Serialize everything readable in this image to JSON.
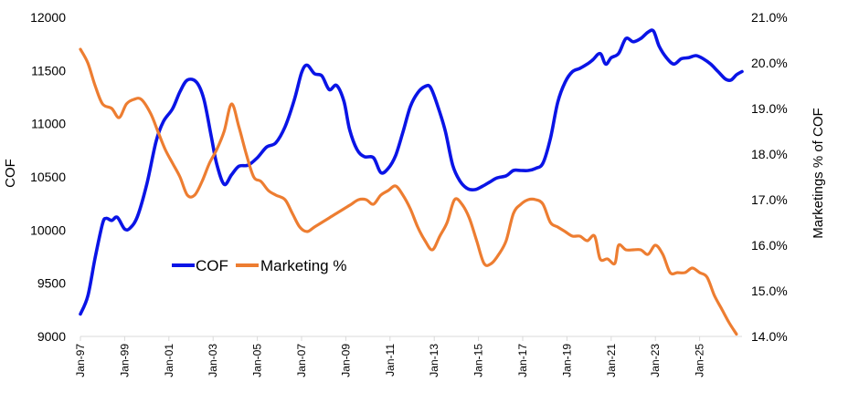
{
  "chart_data": {
    "type": "line",
    "title": "",
    "ylabel_left": "COF",
    "ylabel_right": "Marketings % of COF",
    "y_left": {
      "min": 9000,
      "max": 12000,
      "ticks": [
        "9000",
        "9500",
        "10000",
        "10500",
        "11000",
        "11500",
        "12000"
      ]
    },
    "y_right": {
      "min": 14.0,
      "max": 21.0,
      "ticks": [
        "14.0%",
        "15.0%",
        "16.0%",
        "17.0%",
        "18.0%",
        "19.0%",
        "20.0%",
        "21.0%"
      ]
    },
    "x_range": [
      "1997-01",
      "2026-12"
    ],
    "x_ticks": [
      "Jan-97",
      "Jan-99",
      "Jan-01",
      "Jan-03",
      "Jan-05",
      "Jan-07",
      "Jan-09",
      "Jan-11",
      "Jan-13",
      "Jan-15",
      "Jan-17",
      "Jan-19",
      "Jan-21",
      "Jan-23",
      "Jan-25"
    ],
    "grid": false,
    "legend": {
      "placement": "middle-left",
      "entries": [
        "COF",
        "Marketing %"
      ]
    },
    "series": [
      {
        "name": "COF",
        "axis": "left",
        "color": "#0a14e6",
        "points": [
          [
            "1997-01",
            9210
          ],
          [
            "1997-05",
            9380
          ],
          [
            "1997-09",
            9740
          ],
          [
            "1998-01",
            10060
          ],
          [
            "1998-03",
            10110
          ],
          [
            "1998-06",
            10090
          ],
          [
            "1998-09",
            10120
          ],
          [
            "1999-01",
            10010
          ],
          [
            "1999-04",
            10020
          ],
          [
            "1999-08",
            10130
          ],
          [
            "2000-01",
            10430
          ],
          [
            "2000-06",
            10830
          ],
          [
            "2000-10",
            11020
          ],
          [
            "2001-03",
            11140
          ],
          [
            "2001-07",
            11300
          ],
          [
            "2001-11",
            11410
          ],
          [
            "2002-04",
            11390
          ],
          [
            "2002-08",
            11230
          ],
          [
            "2002-12",
            10880
          ],
          [
            "2003-03",
            10620
          ],
          [
            "2003-07",
            10430
          ],
          [
            "2003-11",
            10520
          ],
          [
            "2004-03",
            10600
          ],
          [
            "2004-08",
            10610
          ],
          [
            "2005-01",
            10680
          ],
          [
            "2005-06",
            10780
          ],
          [
            "2005-11",
            10820
          ],
          [
            "2006-04",
            10970
          ],
          [
            "2006-09",
            11220
          ],
          [
            "2007-01",
            11480
          ],
          [
            "2007-04",
            11550
          ],
          [
            "2007-08",
            11470
          ],
          [
            "2007-12",
            11450
          ],
          [
            "2008-04",
            11320
          ],
          [
            "2008-08",
            11360
          ],
          [
            "2008-12",
            11210
          ],
          [
            "2009-03",
            10950
          ],
          [
            "2009-07",
            10760
          ],
          [
            "2009-11",
            10690
          ],
          [
            "2010-04",
            10680
          ],
          [
            "2010-08",
            10540
          ],
          [
            "2010-12",
            10580
          ],
          [
            "2011-04",
            10700
          ],
          [
            "2011-08",
            10920
          ],
          [
            "2011-12",
            11160
          ],
          [
            "2012-04",
            11290
          ],
          [
            "2012-08",
            11350
          ],
          [
            "2012-11",
            11340
          ],
          [
            "2013-03",
            11160
          ],
          [
            "2013-07",
            10930
          ],
          [
            "2013-11",
            10610
          ],
          [
            "2014-03",
            10460
          ],
          [
            "2014-07",
            10390
          ],
          [
            "2014-11",
            10380
          ],
          [
            "2015-03",
            10410
          ],
          [
            "2015-07",
            10450
          ],
          [
            "2015-11",
            10490
          ],
          [
            "2016-04",
            10510
          ],
          [
            "2016-08",
            10560
          ],
          [
            "2016-12",
            10560
          ],
          [
            "2017-04",
            10560
          ],
          [
            "2017-08",
            10580
          ],
          [
            "2017-12",
            10630
          ],
          [
            "2018-04",
            10860
          ],
          [
            "2018-08",
            11200
          ],
          [
            "2018-12",
            11390
          ],
          [
            "2019-04",
            11490
          ],
          [
            "2019-08",
            11520
          ],
          [
            "2019-12",
            11560
          ],
          [
            "2020-03",
            11600
          ],
          [
            "2020-07",
            11660
          ],
          [
            "2020-10",
            11560
          ],
          [
            "2021-01",
            11620
          ],
          [
            "2021-05",
            11660
          ],
          [
            "2021-09",
            11800
          ],
          [
            "2022-01",
            11770
          ],
          [
            "2022-05",
            11800
          ],
          [
            "2022-09",
            11860
          ],
          [
            "2022-12",
            11870
          ],
          [
            "2023-03",
            11730
          ],
          [
            "2023-07",
            11620
          ],
          [
            "2023-11",
            11560
          ],
          [
            "2024-03",
            11610
          ],
          [
            "2024-07",
            11620
          ],
          [
            "2024-11",
            11640
          ],
          [
            "2025-03",
            11610
          ],
          [
            "2025-07",
            11560
          ],
          [
            "2025-11",
            11490
          ],
          [
            "2026-03",
            11420
          ],
          [
            "2026-06",
            11410
          ],
          [
            "2026-09",
            11460
          ],
          [
            "2026-12",
            11490
          ]
        ]
      },
      {
        "name": "Marketing %",
        "axis": "right",
        "color": "#ed7d31",
        "points": [
          [
            "1997-01",
            20.3
          ],
          [
            "1997-05",
            20.0
          ],
          [
            "1997-09",
            19.5
          ],
          [
            "1998-01",
            19.1
          ],
          [
            "1998-06",
            19.0
          ],
          [
            "1998-10",
            18.8
          ],
          [
            "1999-02",
            19.1
          ],
          [
            "1999-06",
            19.2
          ],
          [
            "1999-10",
            19.2
          ],
          [
            "2000-03",
            18.9
          ],
          [
            "2000-07",
            18.5
          ],
          [
            "2000-11",
            18.1
          ],
          [
            "2001-03",
            17.8
          ],
          [
            "2001-07",
            17.5
          ],
          [
            "2001-11",
            17.1
          ],
          [
            "2002-03",
            17.1
          ],
          [
            "2002-07",
            17.4
          ],
          [
            "2002-11",
            17.8
          ],
          [
            "2003-03",
            18.1
          ],
          [
            "2003-07",
            18.5
          ],
          [
            "2003-11",
            19.1
          ],
          [
            "2004-03",
            18.6
          ],
          [
            "2004-07",
            18.0
          ],
          [
            "2004-11",
            17.5
          ],
          [
            "2005-03",
            17.4
          ],
          [
            "2005-07",
            17.2
          ],
          [
            "2005-11",
            17.1
          ],
          [
            "2006-04",
            17.0
          ],
          [
            "2006-08",
            16.7
          ],
          [
            "2006-12",
            16.4
          ],
          [
            "2007-04",
            16.3
          ],
          [
            "2007-08",
            16.4
          ],
          [
            "2007-12",
            16.5
          ],
          [
            "2008-04",
            16.6
          ],
          [
            "2008-08",
            16.7
          ],
          [
            "2008-12",
            16.8
          ],
          [
            "2009-04",
            16.9
          ],
          [
            "2009-08",
            17.0
          ],
          [
            "2009-12",
            17.0
          ],
          [
            "2010-04",
            16.9
          ],
          [
            "2010-08",
            17.1
          ],
          [
            "2010-12",
            17.2
          ],
          [
            "2011-04",
            17.3
          ],
          [
            "2011-08",
            17.1
          ],
          [
            "2011-12",
            16.8
          ],
          [
            "2012-04",
            16.4
          ],
          [
            "2012-08",
            16.1
          ],
          [
            "2012-12",
            15.9
          ],
          [
            "2013-04",
            16.2
          ],
          [
            "2013-08",
            16.5
          ],
          [
            "2013-12",
            17.0
          ],
          [
            "2014-04",
            16.9
          ],
          [
            "2014-08",
            16.6
          ],
          [
            "2014-12",
            16.1
          ],
          [
            "2015-04",
            15.6
          ],
          [
            "2015-08",
            15.6
          ],
          [
            "2015-12",
            15.8
          ],
          [
            "2016-04",
            16.1
          ],
          [
            "2016-08",
            16.7
          ],
          [
            "2016-12",
            16.9
          ],
          [
            "2017-04",
            17.0
          ],
          [
            "2017-08",
            17.0
          ],
          [
            "2017-12",
            16.9
          ],
          [
            "2018-04",
            16.5
          ],
          [
            "2018-08",
            16.4
          ],
          [
            "2018-12",
            16.3
          ],
          [
            "2019-04",
            16.2
          ],
          [
            "2019-08",
            16.2
          ],
          [
            "2019-12",
            16.1
          ],
          [
            "2020-04",
            16.2
          ],
          [
            "2020-07",
            15.7
          ],
          [
            "2020-11",
            15.7
          ],
          [
            "2021-03",
            15.6
          ],
          [
            "2021-05",
            16.0
          ],
          [
            "2021-09",
            15.9
          ],
          [
            "2022-01",
            15.9
          ],
          [
            "2022-05",
            15.9
          ],
          [
            "2022-09",
            15.8
          ],
          [
            "2023-01",
            16.0
          ],
          [
            "2023-05",
            15.8
          ],
          [
            "2023-09",
            15.4
          ],
          [
            "2024-01",
            15.4
          ],
          [
            "2024-05",
            15.4
          ],
          [
            "2024-09",
            15.5
          ],
          [
            "2025-01",
            15.4
          ],
          [
            "2025-05",
            15.3
          ],
          [
            "2025-09",
            14.9
          ],
          [
            "2026-01",
            14.6
          ],
          [
            "2026-05",
            14.3
          ],
          [
            "2026-09",
            14.05
          ]
        ]
      }
    ]
  }
}
